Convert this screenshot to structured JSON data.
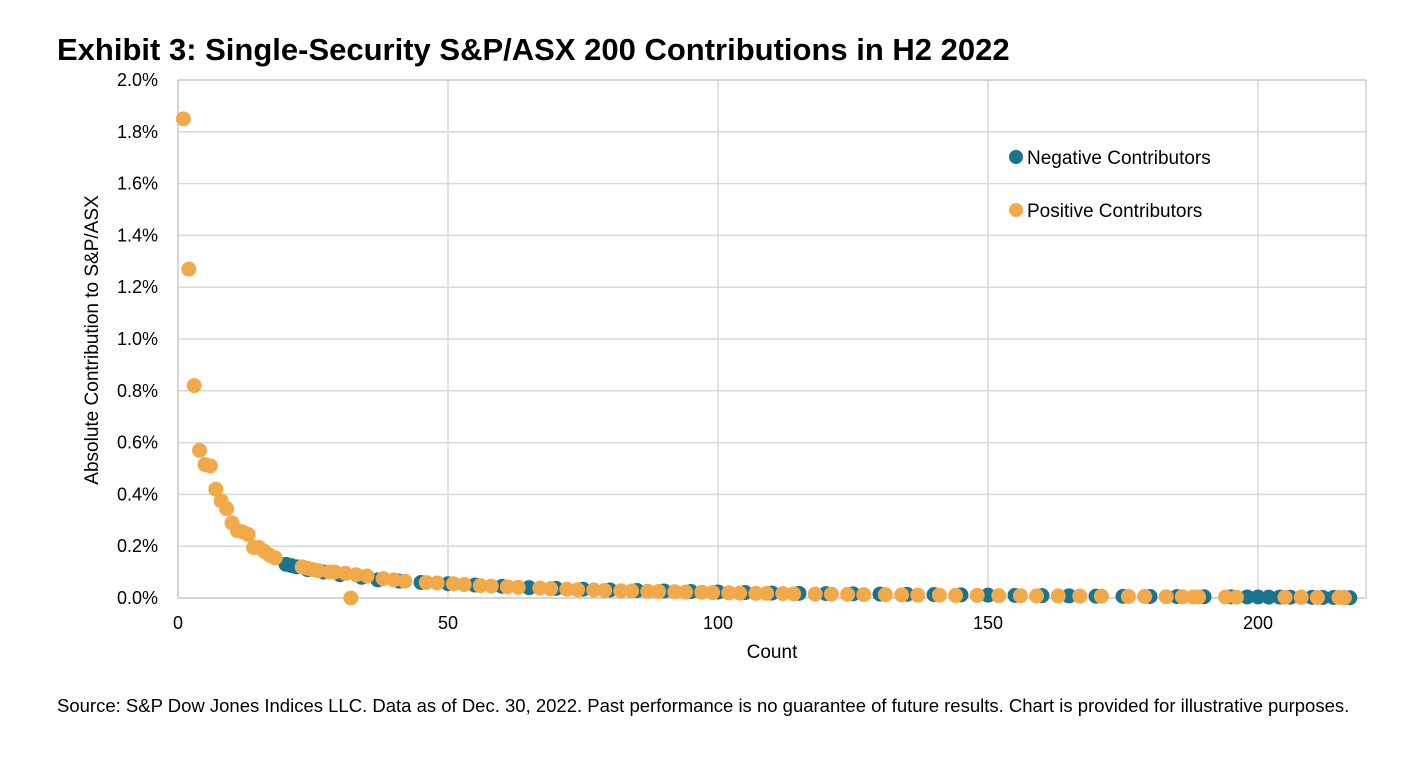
{
  "title": "Exhibit 3: Single-Security S&P/ASX 200 Contributions in H2 2022",
  "footnote": "Source: S&P Dow Jones Indices LLC.  Data as of Dec. 30, 2022.  Past performance is no guarantee of future results.  Chart is provided for illustrative purposes.",
  "colors": {
    "negative": "#1a7490",
    "positive": "#f2a94a",
    "grid": "#d9d9d9"
  },
  "chart_data": {
    "type": "scatter",
    "xlabel": "Count",
    "ylabel": "Absolute Contribution to S&P/ASX",
    "xlim": [
      0,
      220
    ],
    "ylim": [
      0,
      2.0
    ],
    "x_ticks": [
      0,
      50,
      100,
      150,
      200
    ],
    "x_tick_labels": [
      "0",
      "50",
      "100",
      "150",
      "200"
    ],
    "y_ticks": [
      0,
      0.2,
      0.4,
      0.6,
      0.8,
      1.0,
      1.2,
      1.4,
      1.6,
      1.8,
      2.0
    ],
    "y_tick_labels": [
      "0.0%",
      "0.2%",
      "0.4%",
      "0.6%",
      "0.8%",
      "1.0%",
      "1.2%",
      "1.4%",
      "1.6%",
      "1.8%",
      "2.0%"
    ],
    "grid": true,
    "legend_position": "top-right",
    "series": [
      {
        "name": "Negative Contributors",
        "color": "#1a7490",
        "x": [
          20,
          21,
          22,
          24,
          27,
          30,
          34,
          37,
          41,
          45,
          50,
          55,
          60,
          65,
          70,
          75,
          80,
          85,
          90,
          95,
          100,
          105,
          110,
          115,
          120,
          125,
          130,
          135,
          140,
          145,
          150,
          155,
          160,
          165,
          170,
          175,
          180,
          185,
          190,
          195,
          198,
          200,
          202,
          204,
          206,
          208,
          210,
          212,
          214,
          216,
          217
        ],
        "y": [
          0.13,
          0.125,
          0.12,
          0.11,
          0.1,
          0.09,
          0.08,
          0.07,
          0.065,
          0.06,
          0.055,
          0.05,
          0.045,
          0.04,
          0.037,
          0.034,
          0.031,
          0.029,
          0.027,
          0.025,
          0.023,
          0.021,
          0.019,
          0.018,
          0.017,
          0.016,
          0.015,
          0.014,
          0.013,
          0.012,
          0.011,
          0.01,
          0.009,
          0.008,
          0.007,
          0.0065,
          0.006,
          0.0055,
          0.005,
          0.0045,
          0.004,
          0.004,
          0.0035,
          0.0035,
          0.003,
          0.003,
          0.0025,
          0.002,
          0.002,
          0.0015,
          0.001
        ]
      },
      {
        "name": "Positive Contributors",
        "color": "#f2a94a",
        "x": [
          1,
          2,
          3,
          4,
          5,
          6,
          7,
          8,
          9,
          10,
          11,
          12,
          13,
          14,
          15,
          16,
          17,
          18,
          23,
          24,
          25,
          26,
          28,
          29,
          31,
          32,
          33,
          35,
          38,
          40,
          42,
          46,
          48,
          51,
          53,
          56,
          58,
          61,
          63,
          67,
          69,
          72,
          74,
          77,
          79,
          82,
          84,
          87,
          89,
          92,
          94,
          97,
          99,
          102,
          104,
          107,
          109,
          112,
          114,
          118,
          121,
          124,
          127,
          131,
          134,
          137,
          141,
          144,
          148,
          152,
          156,
          159,
          163,
          167,
          171,
          176,
          179,
          183,
          186,
          188,
          189,
          194,
          196,
          205,
          208,
          211,
          215,
          216
        ],
        "y": [
          1.85,
          1.27,
          0.82,
          0.57,
          0.515,
          0.51,
          0.42,
          0.375,
          0.345,
          0.29,
          0.26,
          0.255,
          0.245,
          0.195,
          0.195,
          0.18,
          0.165,
          0.155,
          0.12,
          0.115,
          0.11,
          0.105,
          0.1,
          0.1,
          0.095,
          0.0,
          0.09,
          0.085,
          0.075,
          0.07,
          0.065,
          0.06,
          0.058,
          0.055,
          0.052,
          0.048,
          0.046,
          0.043,
          0.041,
          0.038,
          0.036,
          0.034,
          0.032,
          0.031,
          0.029,
          0.028,
          0.027,
          0.026,
          0.025,
          0.024,
          0.023,
          0.022,
          0.021,
          0.02,
          0.019,
          0.018,
          0.018,
          0.017,
          0.016,
          0.015,
          0.015,
          0.014,
          0.013,
          0.013,
          0.012,
          0.011,
          0.011,
          0.01,
          0.01,
          0.009,
          0.009,
          0.008,
          0.008,
          0.007,
          0.007,
          0.006,
          0.006,
          0.005,
          0.005,
          0.004,
          0.004,
          0.004,
          0.003,
          0.003,
          0.003,
          0.002,
          0.002,
          0.001
        ]
      }
    ]
  }
}
